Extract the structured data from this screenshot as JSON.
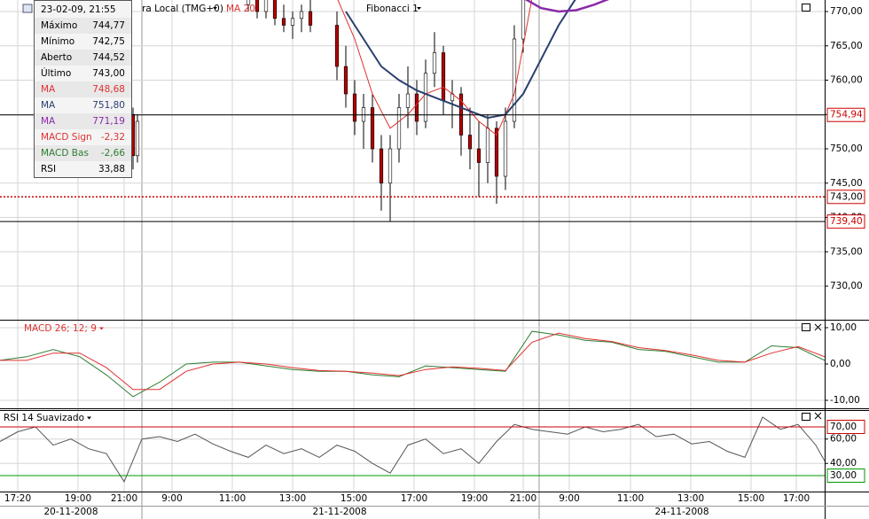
{
  "chart_data": [
    {
      "type": "candlestick",
      "xlim": [
        0,
        186
      ],
      "ylim": [
        725.23,
        771.68
      ],
      "yticks": [
        {
          "value": 770,
          "label": "770,00"
        },
        {
          "value": 765,
          "label": "765,00"
        },
        {
          "value": 760,
          "label": "760,00"
        },
        {
          "value": 755,
          "label": "755,00"
        },
        {
          "value": 750,
          "label": "750,00"
        },
        {
          "value": 745,
          "label": "745,00"
        },
        {
          "value": 740,
          "label": "740,00"
        },
        {
          "value": 735,
          "label": "735,00"
        },
        {
          "value": 730,
          "label": "730,00"
        }
      ],
      "up_color": "#ffffff",
      "down_color": "#b00000",
      "x": [
        30,
        31,
        56,
        58,
        60,
        62,
        64,
        66,
        68,
        70,
        76,
        78,
        80,
        82,
        84,
        86,
        88,
        90,
        92,
        94,
        96,
        98,
        100,
        102,
        104,
        106,
        108,
        110,
        112,
        114,
        116,
        118
      ],
      "open": [
        755,
        749,
        771,
        772,
        770,
        772,
        769,
        768,
        769,
        770,
        768,
        762,
        758,
        754,
        756,
        750,
        745,
        750,
        756,
        758,
        754,
        761,
        764,
        757,
        758,
        752,
        750,
        748,
        753,
        746,
        754,
        766
      ],
      "high": [
        756,
        755,
        773,
        774,
        773,
        773,
        771,
        770,
        771,
        772,
        770,
        765,
        760,
        758,
        758,
        752,
        752,
        758,
        762,
        760,
        763,
        767,
        765,
        760,
        759,
        756,
        754,
        755,
        754,
        756,
        768,
        773
      ],
      "low": [
        747,
        748,
        770,
        769,
        769,
        768,
        767,
        766,
        767,
        767,
        760,
        756,
        752,
        750,
        748,
        741,
        739.4,
        748,
        753,
        752,
        753,
        759,
        755,
        753,
        749,
        747,
        743,
        745,
        742,
        744,
        753,
        764
      ],
      "close": [
        749,
        754,
        772,
        770,
        772,
        769,
        768,
        769,
        770,
        768,
        762,
        758,
        754,
        756,
        750,
        745,
        750,
        756,
        758,
        754,
        761,
        764,
        757,
        758,
        752,
        750,
        748,
        753,
        746,
        754,
        766,
        772
      ],
      "series": [
        {
          "name": "MA",
          "color": "#e03030",
          "x": [
            76,
            80,
            84,
            88,
            92,
            96,
            100,
            104,
            108,
            112,
            116,
            120
          ],
          "values": [
            772,
            766,
            758,
            753,
            755,
            758,
            759,
            757,
            754,
            752,
            758,
            772
          ]
        },
        {
          "name": "MA",
          "color": "#2a3f6e",
          "x": [
            78,
            82,
            86,
            90,
            94,
            98,
            102,
            106,
            110,
            114,
            118,
            122,
            126,
            130
          ],
          "values": [
            770,
            766,
            762,
            760,
            758.5,
            757.5,
            756.5,
            755.5,
            754.5,
            755,
            758,
            763,
            768,
            772
          ]
        },
        {
          "name": "MA",
          "color": "#8a2aa8",
          "x": [
            118,
            122,
            126,
            130,
            134,
            138
          ],
          "values": [
            772,
            770.5,
            770,
            770.2,
            771,
            772
          ]
        }
      ],
      "hlines": [
        {
          "value": 754.94,
          "label": "754,94",
          "color": "#000000",
          "label_color": "#cc0000",
          "dash": false
        },
        {
          "value": 743.0,
          "label": "743,00",
          "color": "#cc0000",
          "label_color": "#000000",
          "dash": true
        },
        {
          "value": 739.4,
          "label": "739,40",
          "color": "#000000",
          "label_color": "#cc0000",
          "dash": false
        }
      ]
    },
    {
      "type": "line",
      "title": "MACD 26; 12; 9",
      "xlim": [
        0,
        186
      ],
      "ylim": [
        -11.95,
        11.95
      ],
      "yticks": [
        {
          "value": 10,
          "label": "10,00"
        },
        {
          "value": 0,
          "label": "0,00"
        },
        {
          "value": -10,
          "label": "-10,00"
        }
      ],
      "series": [
        {
          "name": "MACD Bas",
          "color": "#2e7d32",
          "x": [
            0,
            6,
            12,
            18,
            24,
            30,
            36,
            42,
            48,
            54,
            60,
            66,
            72,
            78,
            84,
            90,
            96,
            102,
            108,
            114,
            120,
            126,
            132,
            138,
            144,
            150,
            156,
            162,
            168,
            174,
            180,
            186
          ],
          "values": [
            1,
            2,
            4,
            2,
            -3,
            -9,
            -5,
            0,
            0.5,
            0.5,
            -0.5,
            -1.5,
            -2,
            -2,
            -3,
            -3.5,
            -0.5,
            -1,
            -1.5,
            -2,
            9,
            8,
            6.5,
            6,
            4,
            3.5,
            2,
            0.5,
            0.5,
            5,
            4.5,
            1
          ]
        },
        {
          "name": "MACD Sign",
          "color": "#e03030",
          "x": [
            0,
            6,
            12,
            18,
            24,
            30,
            36,
            42,
            48,
            54,
            60,
            66,
            72,
            78,
            84,
            90,
            96,
            102,
            108,
            114,
            120,
            126,
            132,
            138,
            144,
            150,
            156,
            162,
            168,
            174,
            180,
            186
          ],
          "values": [
            1,
            1,
            3,
            3,
            -1,
            -7,
            -7,
            -2,
            0,
            0.5,
            0,
            -1,
            -1.8,
            -2,
            -2.5,
            -3.2,
            -1.5,
            -0.8,
            -1.2,
            -1.8,
            6,
            8.5,
            7,
            6.2,
            4.5,
            3.7,
            2.5,
            1,
            0.5,
            3,
            4.8,
            2
          ]
        }
      ]
    },
    {
      "type": "line",
      "title": "RSI 14 Suavizado",
      "xlim": [
        0,
        186
      ],
      "ylim": [
        16.9,
        83.8
      ],
      "yticks": [
        {
          "value": 60,
          "label": "60,00"
        },
        {
          "value": 40,
          "label": "40,00"
        }
      ],
      "xticks": [
        {
          "value": 4,
          "label": "17:20"
        },
        {
          "value": 17.6,
          "label": "19:00"
        },
        {
          "value": 28,
          "label": "21:00"
        },
        {
          "value": 38.8,
          "label": "9:00"
        },
        {
          "value": 52.4,
          "label": "11:00"
        },
        {
          "value": 66,
          "label": "13:00"
        },
        {
          "value": 79.8,
          "label": "15:00"
        },
        {
          "value": 93.4,
          "label": "17:00"
        },
        {
          "value": 107,
          "label": "19:00"
        },
        {
          "value": 118,
          "label": "21:00"
        },
        {
          "value": 128.4,
          "label": "9:00"
        },
        {
          "value": 142.2,
          "label": "11:00"
        },
        {
          "value": 155.8,
          "label": "13:00"
        },
        {
          "value": 169.4,
          "label": "15:00"
        },
        {
          "value": 179.6,
          "label": "17:00"
        }
      ],
      "date_ticks": [
        {
          "value": 16,
          "label": "20-11-2008"
        },
        {
          "value": 76.6,
          "label": "21-11-2008"
        },
        {
          "value": 153.8,
          "label": "24-11-2008"
        }
      ],
      "day_breaks": [
        32,
        121.6
      ],
      "series": [
        {
          "name": "RSI",
          "color": "#555555",
          "x": [
            0,
            4,
            8,
            12,
            16,
            20,
            24,
            28,
            32,
            36,
            40,
            44,
            48,
            52,
            56,
            60,
            64,
            68,
            72,
            76,
            80,
            84,
            88,
            92,
            96,
            100,
            104,
            108,
            112,
            116,
            120,
            124,
            128,
            132,
            136,
            140,
            144,
            148,
            152,
            156,
            160,
            164,
            168,
            172,
            176,
            180,
            184,
            186
          ],
          "values": [
            58,
            66,
            70,
            55,
            60,
            52,
            48,
            25,
            60,
            62,
            58,
            64,
            56,
            50,
            45,
            55,
            48,
            52,
            45,
            55,
            50,
            40,
            32,
            55,
            60,
            48,
            52,
            40,
            58,
            72,
            68,
            66,
            64,
            70,
            66,
            68,
            72,
            62,
            64,
            56,
            58,
            50,
            45,
            78,
            68,
            72,
            55,
            42
          ]
        }
      ],
      "hlines": [
        {
          "value": 70,
          "label": "70,00",
          "color": "#cc0000",
          "label_color": "#000000",
          "dash": false
        },
        {
          "value": 30,
          "label": "30,00",
          "color": "#009900",
          "label_color": "#000000",
          "dash": false
        }
      ]
    }
  ],
  "toolbar": [
    "ra Local (TMG+0)",
    "MA 20",
    "Fibonacci 1"
  ],
  "tooltip": {
    "header": "23-02-09, 21:55",
    "rows": [
      {
        "label": "Máximo",
        "value": "744,77",
        "color": "#000000"
      },
      {
        "label": "Mínimo",
        "value": "742,75",
        "color": "#000000"
      },
      {
        "label": "Aberto",
        "value": "744,52",
        "color": "#000000"
      },
      {
        "label": "Último",
        "value": "743,00",
        "color": "#000000"
      },
      {
        "label": "MA",
        "value": "748,68",
        "color": "#e03030"
      },
      {
        "label": "MA",
        "value": "751,80",
        "color": "#2a3f6e"
      },
      {
        "label": "MA",
        "value": "771,19",
        "color": "#8a2aa8"
      },
      {
        "label": "MACD Sign",
        "value": "-2,32",
        "color": "#e03030"
      },
      {
        "label": "MACD Bas",
        "value": "-2,66",
        "color": "#2e7d32"
      },
      {
        "label": "RSI",
        "value": "33,88",
        "color": "#000000"
      }
    ]
  }
}
